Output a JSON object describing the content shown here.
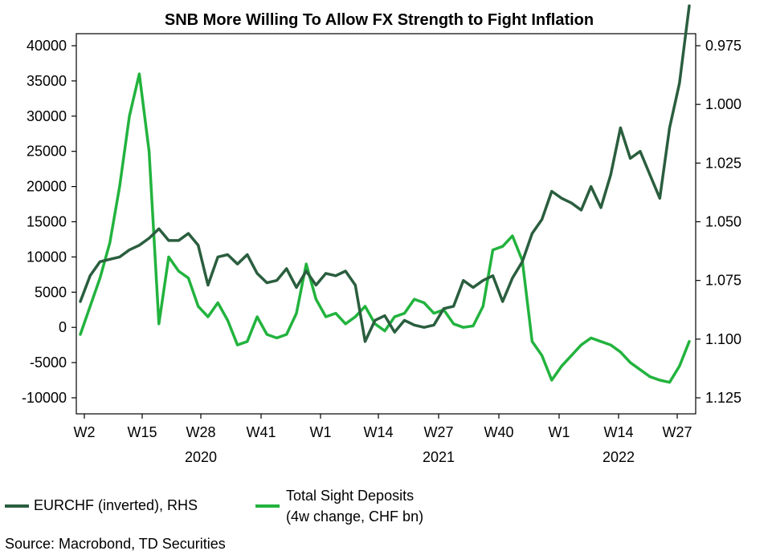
{
  "chart_data": {
    "type": "line",
    "title": "SNB More Willing To Allow FX Strength to Fight Inflation",
    "x_tick_labels": [
      "W2",
      "W15",
      "W28",
      "W41",
      "W1",
      "W14",
      "W27",
      "W40",
      "W1",
      "W14",
      "W27"
    ],
    "year_labels": [
      "2020",
      "2021",
      "2022"
    ],
    "left_axis": {
      "ylim": [
        -10000,
        40000
      ],
      "ticks": [
        40000,
        35000,
        30000,
        25000,
        20000,
        15000,
        10000,
        5000,
        0,
        -5000,
        -10000
      ],
      "tick_labels": [
        "40000",
        "35000",
        "30000",
        "25000",
        "20000",
        "15000",
        "10000",
        "5000",
        "0",
        "-5000",
        "-10000"
      ]
    },
    "right_axis": {
      "inverted": true,
      "ylim": [
        0.975,
        1.125
      ],
      "ticks": [
        0.975,
        1.0,
        1.025,
        1.05,
        1.075,
        1.1,
        1.125
      ],
      "tick_labels": [
        "0.975",
        "1.000",
        "1.025",
        "1.050",
        "1.075",
        "1.100",
        "1.125"
      ]
    },
    "series": [
      {
        "name": "EURCHF (inverted), RHS",
        "axis": "right",
        "color": "#2a5e3e",
        "x": [
          0,
          3,
          6,
          9,
          12,
          15,
          18,
          21,
          24,
          27,
          30,
          33,
          36,
          39,
          42,
          45,
          48,
          51,
          54,
          57,
          60,
          63,
          66,
          69,
          72,
          75,
          78,
          81,
          84,
          87,
          90,
          93,
          96,
          99,
          102,
          105,
          108,
          111,
          114,
          117,
          120,
          123,
          126,
          129,
          132,
          135,
          138,
          141,
          144,
          147,
          150,
          153,
          156,
          159,
          162,
          165,
          168,
          171,
          174,
          177,
          180,
          183,
          186
        ],
        "values": [
          1.084,
          1.073,
          1.067,
          1.066,
          1.065,
          1.062,
          1.06,
          1.057,
          1.053,
          1.058,
          1.058,
          1.055,
          1.06,
          1.077,
          1.065,
          1.064,
          1.068,
          1.064,
          1.072,
          1.076,
          1.075,
          1.07,
          1.078,
          1.071,
          1.077,
          1.072,
          1.073,
          1.071,
          1.077,
          1.101,
          1.092,
          1.09,
          1.097,
          1.092,
          1.094,
          1.095,
          1.094,
          1.087,
          1.086,
          1.075,
          1.078,
          1.075,
          1.073,
          1.084,
          1.074,
          1.067,
          1.055,
          1.049,
          1.037,
          1.04,
          1.042,
          1.045,
          1.035,
          1.044,
          1.03,
          1.01,
          1.023,
          1.02,
          1.03,
          1.04,
          1.01,
          0.991,
          0.958
        ],
        "max_value": 0.958
      },
      {
        "name": "Total Sight Deposits (4w change, CHF bn)",
        "axis": "left",
        "color": "#22b33e",
        "x": [
          0,
          3,
          6,
          9,
          12,
          15,
          18,
          21,
          24,
          27,
          30,
          33,
          36,
          39,
          42,
          45,
          48,
          51,
          54,
          57,
          60,
          63,
          66,
          69,
          72,
          75,
          78,
          81,
          84,
          87,
          90,
          93,
          96,
          99,
          102,
          105,
          108,
          111,
          114,
          117,
          120,
          123,
          126,
          129,
          132,
          135,
          138,
          141,
          144,
          147,
          150,
          153,
          156,
          159,
          162,
          165,
          168,
          171,
          174,
          177,
          180,
          183,
          186
        ],
        "values": [
          -1000,
          3000,
          7000,
          12000,
          20000,
          30000,
          36000,
          25000,
          500,
          10000,
          8000,
          7000,
          3000,
          1500,
          3500,
          1000,
          -2500,
          -2000,
          1500,
          -1000,
          -1500,
          -1000,
          2000,
          9000,
          4000,
          1500,
          2000,
          500,
          1500,
          3000,
          500,
          -500,
          1500,
          2000,
          4000,
          3500,
          2000,
          2500,
          500,
          0,
          200,
          3000,
          11000,
          11500,
          13000,
          9500,
          -2000,
          -4000,
          -7500,
          -5500,
          -4000,
          -2500,
          -1500,
          -2000,
          -2500,
          -3500,
          -5000,
          -6000,
          -7000,
          -7500,
          -7800,
          -5500,
          -2000
        ],
        "max_value": 36500,
        "min_value": -7800
      }
    ],
    "legend": [
      {
        "label_line1": "EURCHF (inverted), RHS",
        "label_line2": ""
      },
      {
        "label_line1": "Total Sight Deposits",
        "label_line2": "(4w change, CHF bn)"
      }
    ],
    "source": "Source: Macrobond, TD Securities"
  }
}
